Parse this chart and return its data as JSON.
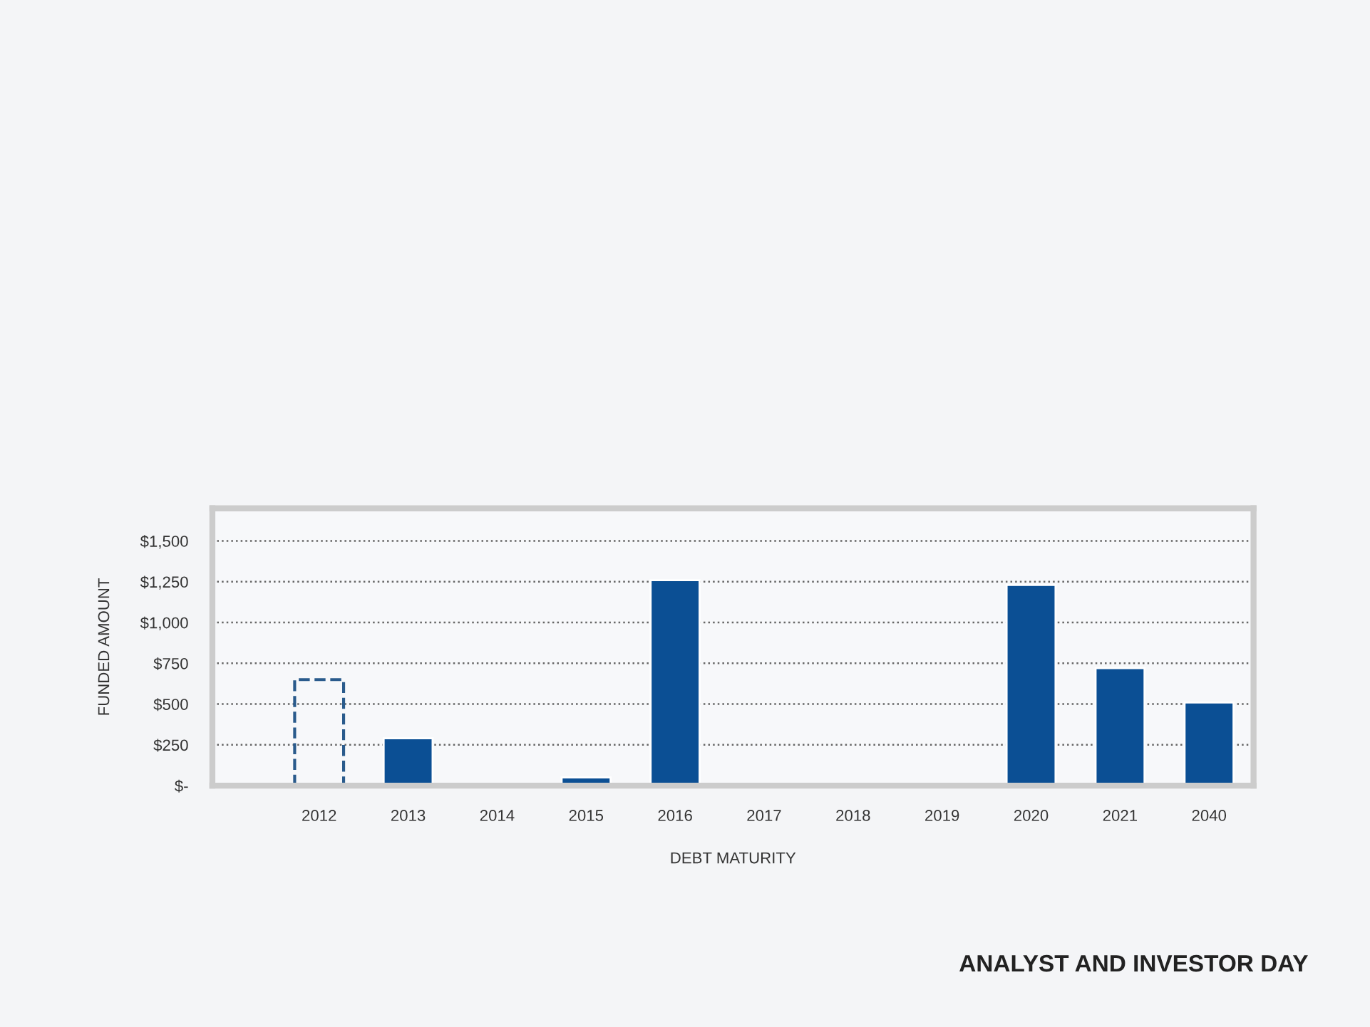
{
  "chart_data": {
    "type": "bar",
    "xlabel": "DEBT MATURITY",
    "ylabel": "FUNDED AMOUNT",
    "categories": [
      "2012",
      "2013",
      "2014",
      "2015",
      "2016",
      "2017",
      "2018",
      "2019",
      "2020",
      "2021",
      "2040"
    ],
    "series": [
      {
        "color": "#2a5b8c",
        "line_style": "dashed",
        "values": [
          650,
          null,
          null,
          null,
          null,
          null,
          null,
          null,
          null,
          null,
          null
        ]
      },
      {
        "color": "#0b4f94",
        "values": [
          null,
          290,
          null,
          50,
          1260,
          null,
          null,
          null,
          1230,
          720,
          510
        ]
      }
    ],
    "ylim": [
      0,
      1700
    ],
    "yticks": [
      {
        "value": 0,
        "label": "$-"
      },
      {
        "value": 250,
        "label": "$250"
      },
      {
        "value": 500,
        "label": "$500"
      },
      {
        "value": 750,
        "label": "$750"
      },
      {
        "value": 1000,
        "label": "$1,000"
      },
      {
        "value": 1250,
        "label": "$1,250"
      },
      {
        "value": 1500,
        "label": "$1,500"
      }
    ],
    "grid": "y",
    "annotations": [
      "ANALYST AND INVESTOR DAY"
    ]
  }
}
